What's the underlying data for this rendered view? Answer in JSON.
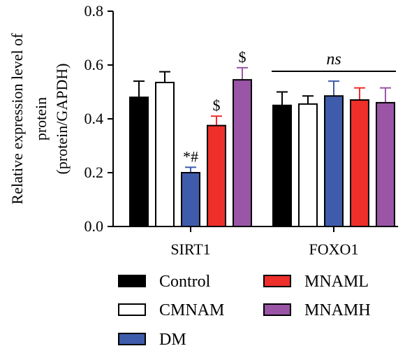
{
  "chart_data": {
    "type": "bar",
    "ylabel_lines": [
      "Relative expression level of",
      "protein",
      "(protein/GAPDH)"
    ],
    "xlabel": "",
    "ylim": [
      0,
      0.8
    ],
    "yticks": [
      "0.0",
      "0.2",
      "0.4",
      "0.6",
      "0.8"
    ],
    "ytick_values": [
      0,
      0.2,
      0.4,
      0.6,
      0.8
    ],
    "categories": [
      "SIRT1",
      "FOXO1"
    ],
    "series": [
      {
        "name": "Control",
        "color": "#000000",
        "values": [
          0.48,
          0.45
        ],
        "errors": [
          0.06,
          0.05
        ]
      },
      {
        "name": "CMNAM",
        "color": "#ffffff",
        "values": [
          0.535,
          0.455
        ],
        "errors": [
          0.04,
          0.03
        ]
      },
      {
        "name": "DM",
        "color": "#3f5bab",
        "values": [
          0.2,
          0.485
        ],
        "errors": [
          0.02,
          0.055
        ]
      },
      {
        "name": "MNAML",
        "color": "#ee2f2a",
        "values": [
          0.375,
          0.47
        ],
        "errors": [
          0.035,
          0.045
        ]
      },
      {
        "name": "MNAMH",
        "color": "#9a55a6",
        "values": [
          0.545,
          0.46
        ],
        "errors": [
          0.045,
          0.055
        ]
      }
    ],
    "annotations": [
      {
        "category": 0,
        "series": 2,
        "text": "*#"
      },
      {
        "category": 0,
        "series": 3,
        "text": "$"
      },
      {
        "category": 0,
        "series": 4,
        "text": "$"
      },
      {
        "category": 1,
        "text": "ns",
        "italic": true
      }
    ],
    "legend": {
      "placement": "bottom",
      "columns": [
        [
          "Control",
          "CMNAM",
          "DM"
        ],
        [
          "MNAML",
          "MNAMH"
        ]
      ]
    },
    "grid": false
  }
}
